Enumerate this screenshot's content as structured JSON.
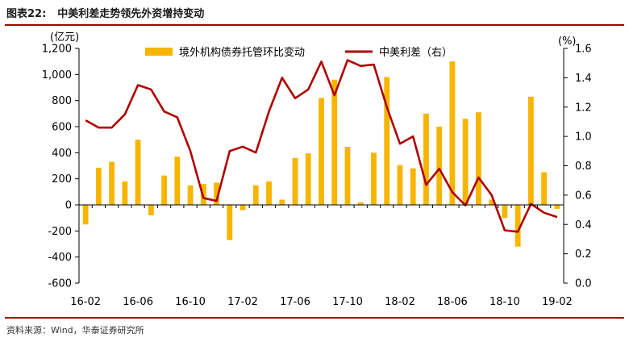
{
  "figure": {
    "number": "图表22:",
    "title": "中美利差走势领先外资增持变动",
    "source": "资料来源：Wind，华泰证券研究所"
  },
  "colors": {
    "bar": "#f7b500",
    "line": "#b00000",
    "rule": "#b00000"
  },
  "chart_data": {
    "type": "bar",
    "x_tick_labels": [
      "16-02",
      "16-06",
      "16-10",
      "17-02",
      "17-06",
      "17-10",
      "18-02",
      "18-06",
      "18-10",
      "19-02"
    ],
    "y_left": {
      "label": "(亿元)",
      "range": [
        -600,
        1200
      ],
      "ticks": [
        "-600",
        "-400",
        "-200",
        "0",
        "200",
        "400",
        "600",
        "800",
        "1,000",
        "1,200"
      ]
    },
    "y_right": {
      "label": "(%)",
      "range": [
        0.0,
        1.6
      ],
      "ticks": [
        "0.0",
        "0.2",
        "0.4",
        "0.6",
        "0.8",
        "1.0",
        "1.2",
        "1.4",
        "1.6"
      ]
    },
    "legend_position": "top",
    "series": [
      {
        "name": "境外机构债券托管环比变动",
        "type": "bar",
        "axis": "left",
        "values": [
          -150,
          285,
          330,
          180,
          500,
          -80,
          225,
          370,
          150,
          160,
          170,
          -270,
          -40,
          150,
          180,
          40,
          360,
          395,
          820,
          960,
          445,
          20,
          400,
          980,
          305,
          280,
          700,
          600,
          1100,
          660,
          710,
          40,
          -100,
          -320,
          830,
          250,
          -30
        ]
      },
      {
        "name": "中美利差（右）",
        "type": "line",
        "axis": "right",
        "values": [
          1.11,
          1.06,
          1.06,
          1.15,
          1.35,
          1.32,
          1.17,
          1.13,
          0.9,
          0.58,
          0.56,
          0.9,
          0.93,
          0.89,
          1.17,
          1.4,
          1.26,
          1.32,
          1.51,
          1.28,
          1.52,
          1.48,
          1.49,
          1.2,
          0.95,
          1.0,
          0.67,
          0.78,
          0.62,
          0.53,
          0.72,
          0.6,
          0.36,
          0.35,
          0.54,
          0.48,
          0.45
        ]
      }
    ]
  }
}
